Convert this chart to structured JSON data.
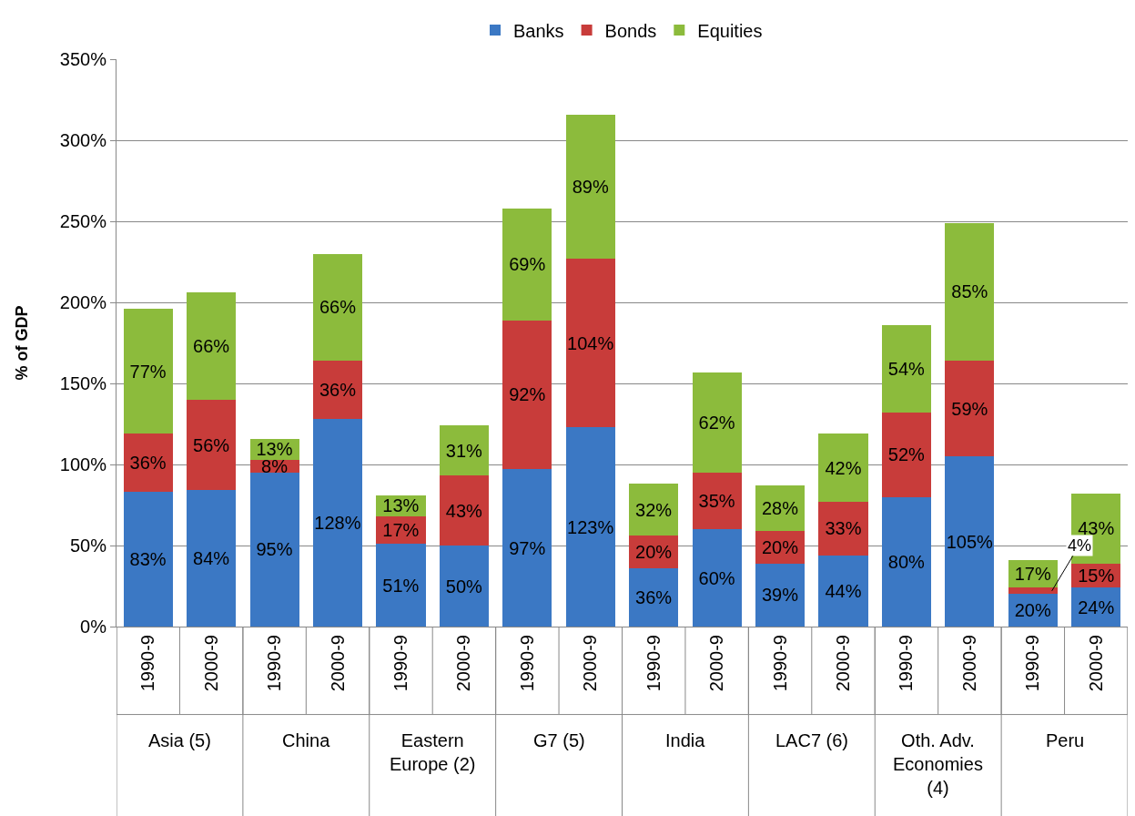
{
  "chart_data": {
    "type": "bar",
    "stacked": true,
    "ylabel": "% of GDP",
    "categories": [
      "1990-9",
      "2000-9",
      "1990-9",
      "2000-9",
      "1990-9",
      "2000-9",
      "1990-9",
      "2000-9",
      "1990-9",
      "2000-9",
      "1990-9",
      "2000-9",
      "1990-9",
      "2000-9",
      "1990-9",
      "2000-9"
    ],
    "series": [
      {
        "name": "Banks",
        "color": "#3b78c4",
        "values": [
          83,
          84,
          95,
          128,
          51,
          50,
          97,
          123,
          36,
          60,
          39,
          44,
          80,
          105,
          20,
          24
        ],
        "value_labels": [
          "83%",
          "84%",
          "95%",
          "128%",
          "51%",
          "50%",
          "97%",
          "123%",
          "36%",
          "60%",
          "39%",
          "44%",
          "80%",
          "105%",
          "20%",
          "24%"
        ]
      },
      {
        "name": "Bonds",
        "color": "#c83c3a",
        "values": [
          36,
          56,
          8,
          36,
          17,
          43,
          92,
          104,
          20,
          35,
          20,
          33,
          52,
          59,
          4,
          15
        ],
        "value_labels": [
          "36%",
          "56%",
          "8%",
          "36%",
          "17%",
          "43%",
          "92%",
          "104%",
          "20%",
          "35%",
          "20%",
          "33%",
          "52%",
          "59%",
          "4%",
          "15%"
        ]
      },
      {
        "name": "Equities",
        "color": "#8cbb3c",
        "values": [
          77,
          66,
          13,
          66,
          13,
          31,
          69,
          89,
          32,
          62,
          28,
          42,
          54,
          85,
          17,
          43
        ],
        "value_labels": [
          "77%",
          "66%",
          "13%",
          "66%",
          "13%",
          "31%",
          "69%",
          "89%",
          "32%",
          "62%",
          "28%",
          "42%",
          "54%",
          "85%",
          "17%",
          "43%"
        ]
      }
    ],
    "annotations": [
      "Asia (5)",
      "China",
      "Eastern Europe (2)",
      "G7 (5)",
      "India",
      "LAC7 (6)",
      "Oth. Adv. Economies (4)",
      "Peru"
    ],
    "ylim": [
      0,
      350
    ],
    "yticks": [
      {
        "value": 0,
        "label": "0%"
      },
      {
        "value": 50,
        "label": "50%"
      },
      {
        "value": 100,
        "label": "100%"
      },
      {
        "value": 150,
        "label": "150%"
      },
      {
        "value": 200,
        "label": "200%"
      },
      {
        "value": 250,
        "label": "250%"
      },
      {
        "value": 300,
        "label": "300%"
      },
      {
        "value": 350,
        "label": "350%"
      }
    ],
    "grid": "y",
    "legend": "top",
    "data_labels": true
  }
}
